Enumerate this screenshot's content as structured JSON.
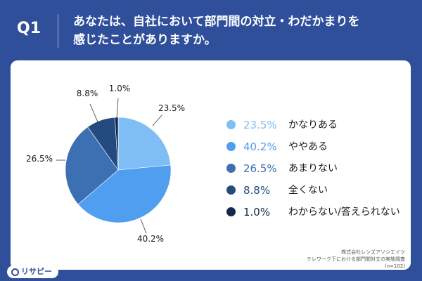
{
  "header": {
    "badge": "Q1",
    "question_line1": "あなたは、自社において部門間の対立・わだかまりを",
    "question_line2": "感じたことがありますか。"
  },
  "chart_data": {
    "type": "pie",
    "slices": [
      {
        "label": "かなりある",
        "value": 23.5,
        "display": "23.5%",
        "color": "#7fbdf5"
      },
      {
        "label": "ややある",
        "value": 40.2,
        "display": "40.2%",
        "color": "#4f9ef0"
      },
      {
        "label": "あまりない",
        "value": 26.5,
        "display": "26.5%",
        "color": "#3d6fb3"
      },
      {
        "label": "全くない",
        "value": 8.8,
        "display": "8.8%",
        "color": "#244b80"
      },
      {
        "label": "わからない/答えられない",
        "value": 1.0,
        "display": "1.0%",
        "color": "#14284b"
      }
    ],
    "start_angle_deg": 0,
    "direction": "clockwise",
    "legend_position": "right"
  },
  "source": {
    "line1": "株式会社レンズアソシエイツ",
    "line2": "テレワーク下における部門間対立の実態調査",
    "line3": "(n=102)"
  },
  "logo": {
    "text": "リサピー"
  }
}
